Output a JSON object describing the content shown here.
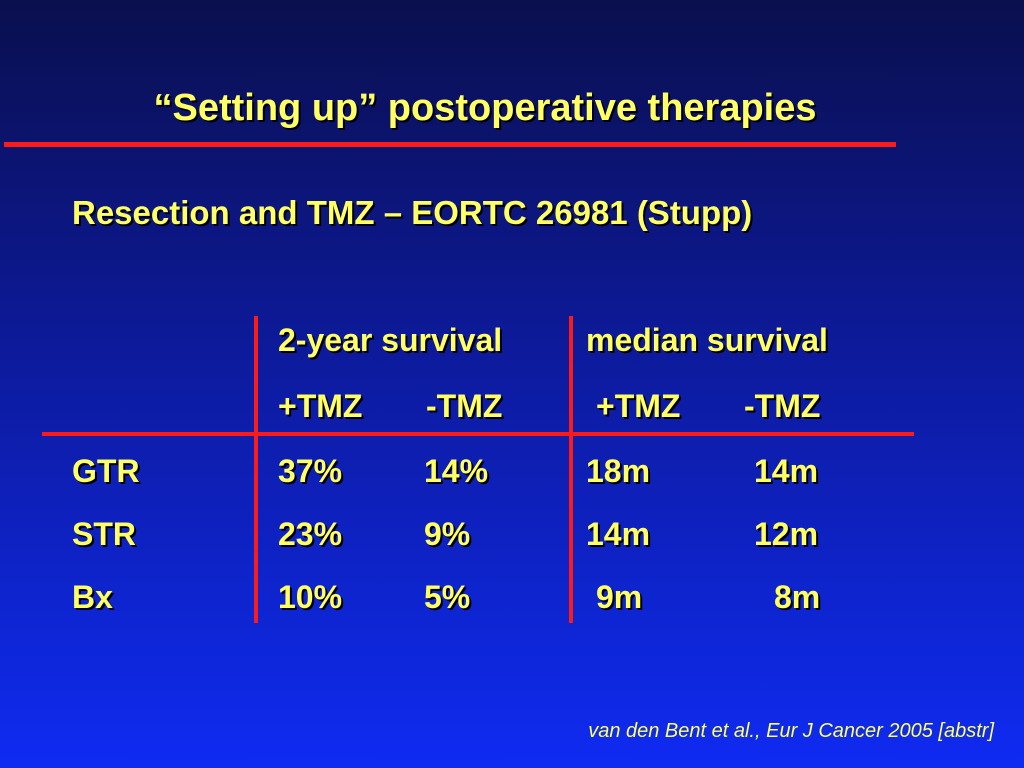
{
  "slide": {
    "title": "“Setting up” postoperative therapies",
    "subtitle": "Resection and TMZ – EORTC 26981 (Stupp)",
    "citation": "van den Bent et al., Eur J Cancer 2005 [abstr]",
    "colors": {
      "text": "#ffff66",
      "rule": "#ff1a1a",
      "background_top": "#0a0f4e",
      "background_bottom": "#0f2bf2"
    }
  },
  "table": {
    "group_headers": [
      "2-year survival",
      "median survival"
    ],
    "sub_headers": [
      "+TMZ",
      "-TMZ",
      "+TMZ",
      "-TMZ"
    ],
    "rows": [
      {
        "label": "GTR",
        "values": [
          "37%",
          "14%",
          "18m",
          "14m"
        ]
      },
      {
        "label": "STR",
        "values": [
          "23%",
          "9%",
          "14m",
          "12m"
        ]
      },
      {
        "label": "Bx",
        "values": [
          "10%",
          "5%",
          "9m",
          "8m"
        ]
      }
    ]
  }
}
